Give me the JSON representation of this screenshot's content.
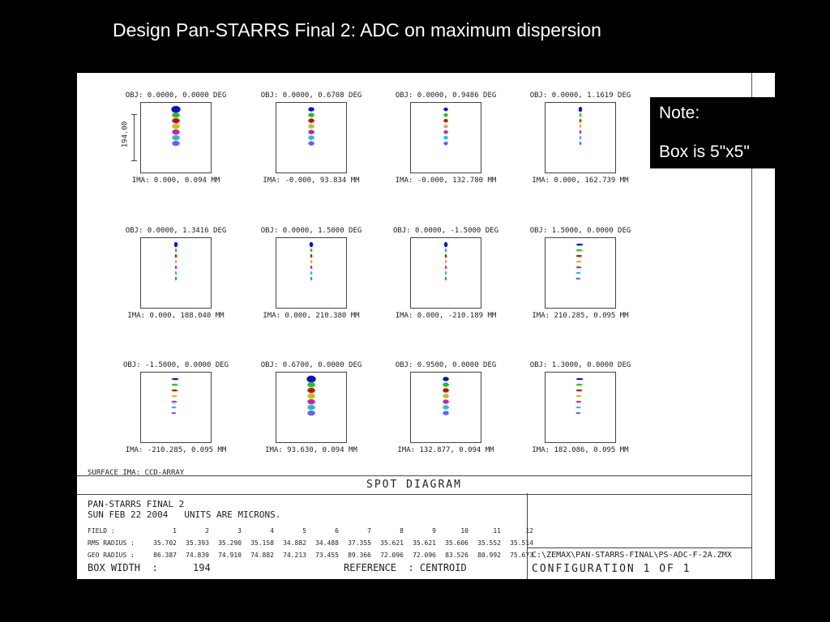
{
  "slide": {
    "title": "Design Pan-STARRS Final 2: ADC on maximum dispersion"
  },
  "note": {
    "line1": "Note:",
    "line2": "Box is 5\"x5\""
  },
  "diagram": {
    "scale_label": "194.00",
    "surface_label": "SURFACE IMA: CCD-ARRAY",
    "title": "SPOT DIAGRAM",
    "cells": [
      {
        "obj": "OBJ: 0.0000, 0.0000 DEG",
        "ima": "IMA: 0.000, 0.094 MM",
        "style": "vertical-big"
      },
      {
        "obj": "OBJ: 0.0000, 0.6708 DEG",
        "ima": "IMA: -0.000, 93.834 MM",
        "style": "vertical-med"
      },
      {
        "obj": "OBJ: 0.0000, 0.9486 DEG",
        "ima": "IMA: -0.000, 132.780 MM",
        "style": "vertical-small"
      },
      {
        "obj": "OBJ: 0.0000, 1.1619 DEG",
        "ima": "IMA: 0.000, 162.739 MM",
        "style": "vertical-narrow"
      },
      {
        "obj": "OBJ: 0.0000, 1.3416 DEG",
        "ima": "IMA: 0.000, 188.040 MM",
        "style": "vertical-narrow"
      },
      {
        "obj": "OBJ: 0.0000, 1.5000 DEG",
        "ima": "IMA: 0.000, 210.380 MM",
        "style": "vertical-narrow"
      },
      {
        "obj": "OBJ: 0.0000, -1.5000 DEG",
        "ima": "IMA: 0.000, -210.189 MM",
        "style": "vertical-narrow"
      },
      {
        "obj": "OBJ: 1.5000, 0.0000 DEG",
        "ima": "IMA: 210.285, 0.095 MM",
        "style": "horizontal"
      },
      {
        "obj": "OBJ: -1.5000, 0.0000 DEG",
        "ima": "IMA: -210.285, 0.095 MM",
        "style": "horizontal"
      },
      {
        "obj": "OBJ: 0.6700, 0.0000 DEG",
        "ima": "IMA: 93.630, 0.094 MM",
        "style": "vertical-big"
      },
      {
        "obj": "OBJ: 0.9500, 0.0000 DEG",
        "ima": "IMA: 132.877, 0.094 MM",
        "style": "vertical-med"
      },
      {
        "obj": "OBJ: 1.3000, 0.0000 DEG",
        "ima": "IMA: 182.086, 0.095 MM",
        "style": "horizontal"
      }
    ],
    "spot_colors": [
      "#1010c0",
      "#20c020",
      "#c01010",
      "#c0c020",
      "#c020c0",
      "#20c0c0",
      "#6060ff"
    ]
  },
  "info": {
    "line1": "PAN-STARRS FINAL 2",
    "line2": "SUN FEB 22 2004   UNITS ARE MICRONS.",
    "field_header": "FIELD    :",
    "rms_header": "RMS RADIUS :",
    "geo_header": "GEO RADIUS :",
    "fields": [
      "1",
      "2",
      "3",
      "4",
      "5",
      "6",
      "7",
      "8",
      "9",
      "10",
      "11",
      "12"
    ],
    "rms": [
      "35.702",
      "35.393",
      "35.290",
      "35.158",
      "34.882",
      "34.488",
      "37.355",
      "35.621",
      "35.621",
      "35.606",
      "35.552",
      "35.514"
    ],
    "geo": [
      "86.387",
      "74.839",
      "74.910",
      "74.882",
      "74.213",
      "73.455",
      "89.366",
      "72.096",
      "72.096",
      "83.526",
      "80.992",
      "75.673"
    ],
    "box_width": "BOX WIDTH  :      194",
    "reference": "REFERENCE  : CENTROID",
    "path": "C:\\ZEMAX\\PAN-STARRS-FINAL\\PS-ADC-F-2A.ZMX",
    "configuration": "CONFIGURATION  1  OF  1"
  }
}
